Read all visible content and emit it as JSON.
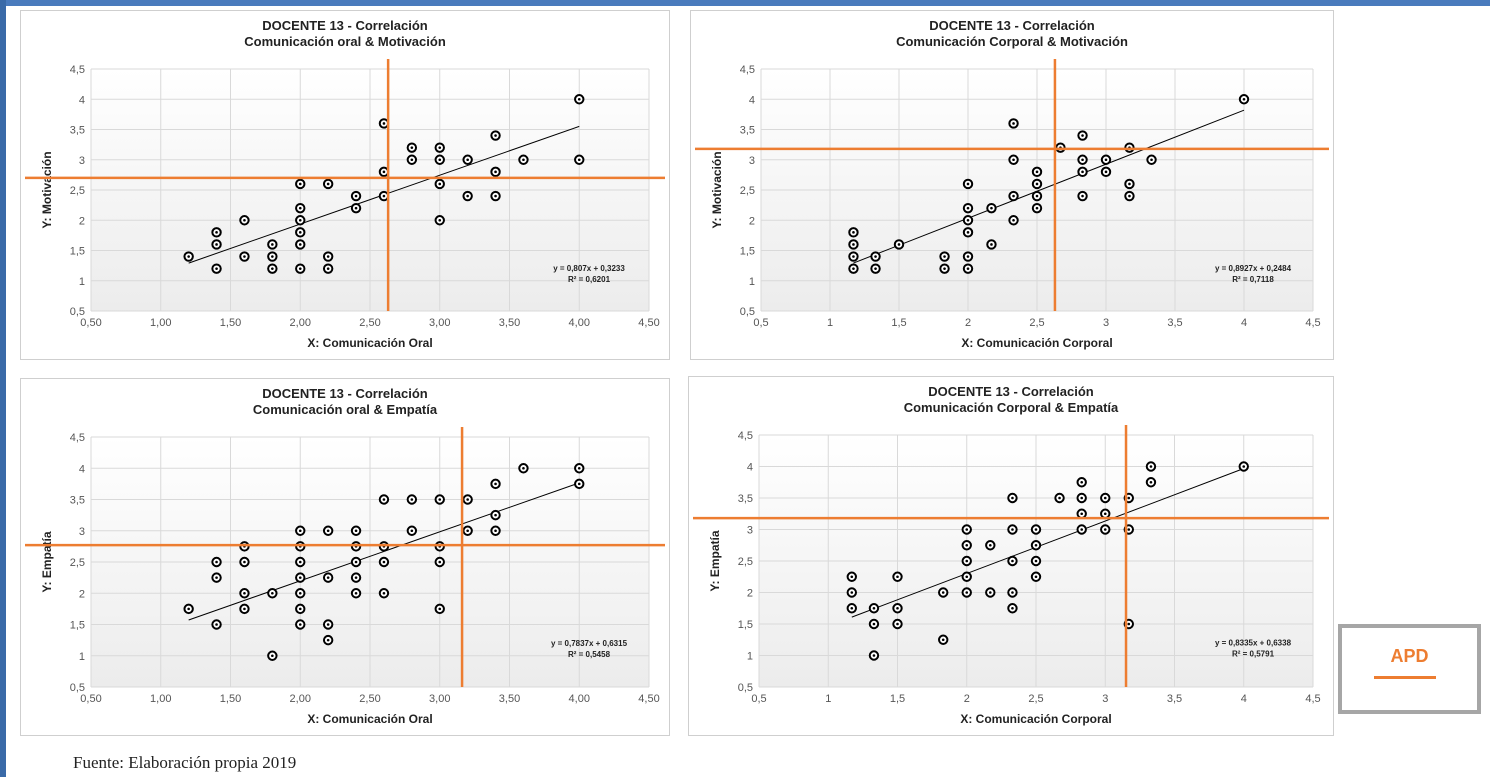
{
  "source_note": "Fuente: Elaboración propia 2019",
  "legend_box": {
    "label": "APD",
    "color": "#ed7d31"
  },
  "colors": {
    "reference_lines": "#ed7d31",
    "markers": "#000000",
    "trendline": "#000000",
    "grid": "#d9d9d9"
  },
  "chart_data": [
    {
      "type": "scatter",
      "title_line1": "DOCENTE 13 - Correlación",
      "title_line2": "Comunicación oral & Motivación",
      "xlabel": "X: Comunicación Oral",
      "ylabel": "Y: Motivación",
      "xlim": [
        0.5,
        4.5
      ],
      "ylim": [
        0.5,
        4.5
      ],
      "xticks": [
        "0,50",
        "1,00",
        "1,50",
        "2,00",
        "2,50",
        "3,00",
        "3,50",
        "4,00",
        "4,50"
      ],
      "yticks": [
        "0,5",
        "1",
        "1,5",
        "2",
        "2,5",
        "3",
        "3,5",
        "4",
        "4,5"
      ],
      "equation": "y = 0,807x + 0,3233",
      "r2": "R² = 0,6201",
      "trend": {
        "slope": 0.807,
        "intercept": 0.3233,
        "x_range": [
          1.2,
          4.0
        ]
      },
      "mean_x": 2.63,
      "mean_y": 2.7,
      "points": [
        [
          1.2,
          1.4
        ],
        [
          1.4,
          1.8
        ],
        [
          1.4,
          1.6
        ],
        [
          1.4,
          1.2
        ],
        [
          1.6,
          2.0
        ],
        [
          1.6,
          1.4
        ],
        [
          1.8,
          1.6
        ],
        [
          1.8,
          1.4
        ],
        [
          1.8,
          1.2
        ],
        [
          2.0,
          2.6
        ],
        [
          2.0,
          2.2
        ],
        [
          2.0,
          2.0
        ],
        [
          2.0,
          1.8
        ],
        [
          2.0,
          1.6
        ],
        [
          2.0,
          1.2
        ],
        [
          2.2,
          2.6
        ],
        [
          2.2,
          1.4
        ],
        [
          2.2,
          1.2
        ],
        [
          2.4,
          2.4
        ],
        [
          2.4,
          2.2
        ],
        [
          2.6,
          3.6
        ],
        [
          2.6,
          2.8
        ],
        [
          2.6,
          2.4
        ],
        [
          2.8,
          3.2
        ],
        [
          2.8,
          3.0
        ],
        [
          3.0,
          3.2
        ],
        [
          3.0,
          3.0
        ],
        [
          3.0,
          2.6
        ],
        [
          3.0,
          2.0
        ],
        [
          3.2,
          3.0
        ],
        [
          3.2,
          2.4
        ],
        [
          3.4,
          3.4
        ],
        [
          3.4,
          2.8
        ],
        [
          3.4,
          2.4
        ],
        [
          3.6,
          3.0
        ],
        [
          4.0,
          4.0
        ],
        [
          4.0,
          3.0
        ]
      ]
    },
    {
      "type": "scatter",
      "title_line1": "DOCENTE 13 - Correlación",
      "title_line2": "Comunicación Corporal & Motivación",
      "xlabel": "X: Comunicación Corporal",
      "ylabel": "Y: Motivación",
      "xlim": [
        0.5,
        4.5
      ],
      "ylim": [
        0.5,
        4.5
      ],
      "xticks": [
        "0,5",
        "1",
        "1,5",
        "2",
        "2,5",
        "3",
        "3,5",
        "4",
        "4,5"
      ],
      "yticks": [
        "0,5",
        "1",
        "1,5",
        "2",
        "2,5",
        "3",
        "3,5",
        "4",
        "4,5"
      ],
      "equation": "y = 0,8927x + 0,2484",
      "r2": "R² = 0,7118",
      "trend": {
        "slope": 0.8927,
        "intercept": 0.2484,
        "x_range": [
          1.17,
          4.0
        ]
      },
      "mean_x": 2.63,
      "mean_y": 3.18,
      "points": [
        [
          1.17,
          1.8
        ],
        [
          1.17,
          1.6
        ],
        [
          1.17,
          1.4
        ],
        [
          1.17,
          1.2
        ],
        [
          1.33,
          1.4
        ],
        [
          1.33,
          1.2
        ],
        [
          1.5,
          1.6
        ],
        [
          1.83,
          1.4
        ],
        [
          1.83,
          1.2
        ],
        [
          2.0,
          2.6
        ],
        [
          2.0,
          2.2
        ],
        [
          2.0,
          2.0
        ],
        [
          2.0,
          1.8
        ],
        [
          2.0,
          1.4
        ],
        [
          2.0,
          1.2
        ],
        [
          2.17,
          2.2
        ],
        [
          2.17,
          1.6
        ],
        [
          2.33,
          3.6
        ],
        [
          2.33,
          3.0
        ],
        [
          2.33,
          2.4
        ],
        [
          2.33,
          2.0
        ],
        [
          2.5,
          2.8
        ],
        [
          2.5,
          2.6
        ],
        [
          2.5,
          2.4
        ],
        [
          2.5,
          2.2
        ],
        [
          2.67,
          3.2
        ],
        [
          2.83,
          3.4
        ],
        [
          2.83,
          3.0
        ],
        [
          2.83,
          2.8
        ],
        [
          2.83,
          2.4
        ],
        [
          3.0,
          3.0
        ],
        [
          3.0,
          2.8
        ],
        [
          3.17,
          3.2
        ],
        [
          3.17,
          2.6
        ],
        [
          3.17,
          2.4
        ],
        [
          3.33,
          3.0
        ],
        [
          4.0,
          4.0
        ]
      ]
    },
    {
      "type": "scatter",
      "title_line1": "DOCENTE 13 - Correlación",
      "title_line2": "Comunicación oral & Empatía",
      "xlabel": "X: Comunicación Oral",
      "ylabel": "Y: Empatía",
      "xlim": [
        0.5,
        4.5
      ],
      "ylim": [
        0.5,
        4.5
      ],
      "xticks": [
        "0,50",
        "1,00",
        "1,50",
        "2,00",
        "2,50",
        "3,00",
        "3,50",
        "4,00",
        "4,50"
      ],
      "yticks": [
        "0,5",
        "1",
        "1,5",
        "2",
        "2,5",
        "3",
        "3,5",
        "4",
        "4,5"
      ],
      "equation": "y = 0,7837x + 0,6315",
      "r2": "R² = 0,5458",
      "trend": {
        "slope": 0.7837,
        "intercept": 0.6315,
        "x_range": [
          1.2,
          4.0
        ]
      },
      "mean_x": 3.16,
      "mean_y": 2.77,
      "points": [
        [
          1.2,
          1.75
        ],
        [
          1.4,
          2.5
        ],
        [
          1.4,
          2.25
        ],
        [
          1.4,
          1.5
        ],
        [
          1.6,
          2.75
        ],
        [
          1.6,
          2.5
        ],
        [
          1.6,
          2.0
        ],
        [
          1.6,
          1.75
        ],
        [
          1.8,
          2.0
        ],
        [
          1.8,
          1.0
        ],
        [
          2.0,
          3.0
        ],
        [
          2.0,
          2.75
        ],
        [
          2.0,
          2.5
        ],
        [
          2.0,
          2.25
        ],
        [
          2.0,
          2.0
        ],
        [
          2.0,
          1.75
        ],
        [
          2.0,
          1.5
        ],
        [
          2.2,
          3.0
        ],
        [
          2.2,
          2.25
        ],
        [
          2.2,
          1.5
        ],
        [
          2.2,
          1.25
        ],
        [
          2.4,
          3.0
        ],
        [
          2.4,
          2.75
        ],
        [
          2.4,
          2.5
        ],
        [
          2.4,
          2.25
        ],
        [
          2.4,
          2.0
        ],
        [
          2.6,
          3.5
        ],
        [
          2.6,
          2.75
        ],
        [
          2.6,
          2.5
        ],
        [
          2.6,
          2.0
        ],
        [
          2.8,
          3.5
        ],
        [
          2.8,
          3.0
        ],
        [
          3.0,
          3.5
        ],
        [
          3.0,
          2.75
        ],
        [
          3.0,
          2.5
        ],
        [
          3.0,
          1.75
        ],
        [
          3.2,
          3.5
        ],
        [
          3.2,
          3.0
        ],
        [
          3.4,
          3.75
        ],
        [
          3.4,
          3.25
        ],
        [
          3.4,
          3.0
        ],
        [
          3.6,
          4.0
        ],
        [
          4.0,
          4.0
        ],
        [
          4.0,
          3.75
        ]
      ]
    },
    {
      "type": "scatter",
      "title_line1": "DOCENTE 13 - Correlación",
      "title_line2": "Comunicación Corporal & Empatía",
      "xlabel": "X: Comunicación Corporal",
      "ylabel": "Y: Empatía",
      "xlim": [
        0.5,
        4.5
      ],
      "ylim": [
        0.5,
        4.5
      ],
      "xticks": [
        "0,5",
        "1",
        "1,5",
        "2",
        "2,5",
        "3",
        "3,5",
        "4",
        "4,5"
      ],
      "yticks": [
        "0,5",
        "1",
        "1,5",
        "2",
        "2,5",
        "3",
        "3,5",
        "4",
        "4,5"
      ],
      "equation": "y = 0,8335x + 0,6338",
      "r2": "R² = 0,5791",
      "trend": {
        "slope": 0.8335,
        "intercept": 0.6338,
        "x_range": [
          1.17,
          4.0
        ]
      },
      "mean_x": 3.15,
      "mean_y": 3.18,
      "points": [
        [
          1.17,
          2.25
        ],
        [
          1.17,
          2.0
        ],
        [
          1.17,
          1.75
        ],
        [
          1.33,
          1.75
        ],
        [
          1.33,
          1.5
        ],
        [
          1.33,
          1.0
        ],
        [
          1.5,
          2.25
        ],
        [
          1.5,
          1.75
        ],
        [
          1.5,
          1.5
        ],
        [
          1.83,
          2.0
        ],
        [
          1.83,
          1.25
        ],
        [
          2.0,
          3.0
        ],
        [
          2.0,
          2.75
        ],
        [
          2.0,
          2.5
        ],
        [
          2.0,
          2.25
        ],
        [
          2.0,
          2.0
        ],
        [
          2.17,
          2.75
        ],
        [
          2.17,
          2.0
        ],
        [
          2.33,
          3.5
        ],
        [
          2.33,
          3.0
        ],
        [
          2.33,
          2.5
        ],
        [
          2.33,
          2.0
        ],
        [
          2.33,
          1.75
        ],
        [
          2.5,
          3.0
        ],
        [
          2.5,
          2.75
        ],
        [
          2.5,
          2.5
        ],
        [
          2.5,
          2.25
        ],
        [
          2.67,
          3.5
        ],
        [
          2.83,
          3.75
        ],
        [
          2.83,
          3.5
        ],
        [
          2.83,
          3.25
        ],
        [
          2.83,
          3.0
        ],
        [
          3.0,
          3.5
        ],
        [
          3.0,
          3.25
        ],
        [
          3.0,
          3.0
        ],
        [
          3.17,
          3.5
        ],
        [
          3.17,
          3.0
        ],
        [
          3.17,
          1.5
        ],
        [
          3.33,
          4.0
        ],
        [
          3.33,
          3.75
        ],
        [
          4.0,
          4.0
        ]
      ]
    }
  ]
}
